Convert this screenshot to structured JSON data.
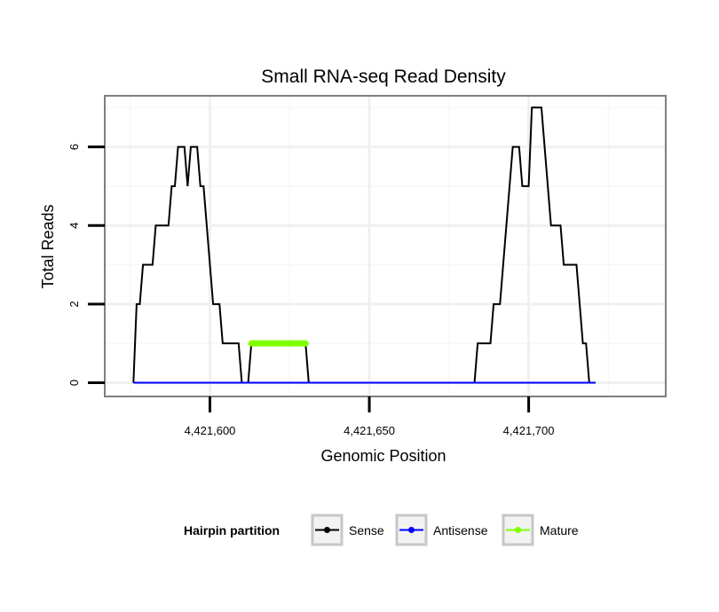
{
  "chart_data": {
    "type": "line",
    "title": "Small RNA-seq Read Density",
    "xlabel": "Genomic Position",
    "ylabel": "Total Reads",
    "xlim": [
      4421567,
      4421743
    ],
    "ylim": [
      -0.35,
      7.3
    ],
    "x_ticks": [
      4421600,
      4421650,
      4421700
    ],
    "x_tick_labels": [
      "4,421,600",
      "4,421,650",
      "4,421,700"
    ],
    "y_ticks": [
      0,
      2,
      4,
      6
    ],
    "y_tick_labels": [
      "0",
      "2",
      "4",
      "6"
    ],
    "grid": true,
    "legend": {
      "title": "Hairpin partition",
      "position": "bottom",
      "entries": [
        "Sense",
        "Antisense",
        "Mature"
      ]
    },
    "series": [
      {
        "name": "Sense",
        "color": "#000000",
        "points": [
          [
            4421576,
            0
          ],
          [
            4421577,
            2
          ],
          [
            4421578,
            2
          ],
          [
            4421579,
            3
          ],
          [
            4421580,
            3
          ],
          [
            4421582,
            3
          ],
          [
            4421583,
            4
          ],
          [
            4421585,
            4
          ],
          [
            4421587,
            4
          ],
          [
            4421588,
            5
          ],
          [
            4421589,
            5
          ],
          [
            4421590,
            6
          ],
          [
            4421592,
            6
          ],
          [
            4421593,
            5
          ],
          [
            4421594,
            6
          ],
          [
            4421596,
            6
          ],
          [
            4421597,
            5
          ],
          [
            4421598,
            5
          ],
          [
            4421599,
            4
          ],
          [
            4421600,
            3
          ],
          [
            4421601,
            2
          ],
          [
            4421603,
            2
          ],
          [
            4421604,
            1
          ],
          [
            4421606,
            1
          ],
          [
            4421608,
            1
          ],
          [
            4421609,
            1
          ],
          [
            4421610,
            0
          ],
          [
            4421612,
            0
          ],
          [
            4421613,
            1
          ],
          [
            4421630,
            1
          ],
          [
            4421631,
            0
          ],
          [
            4421683,
            0
          ],
          [
            4421684,
            1
          ],
          [
            4421688,
            1
          ],
          [
            4421689,
            2
          ],
          [
            4421691,
            2
          ],
          [
            4421692,
            3
          ],
          [
            4421693,
            4
          ],
          [
            4421694,
            5
          ],
          [
            4421695,
            6
          ],
          [
            4421697,
            6
          ],
          [
            4421698,
            5
          ],
          [
            4421700,
            5
          ],
          [
            4421701,
            7
          ],
          [
            4421704,
            7
          ],
          [
            4421705,
            6
          ],
          [
            4421706,
            5
          ],
          [
            4421707,
            4
          ],
          [
            4421710,
            4
          ],
          [
            4421711,
            3
          ],
          [
            4421715,
            3
          ],
          [
            4421716,
            2
          ],
          [
            4421717,
            1
          ],
          [
            4421718,
            1
          ],
          [
            4421719,
            0
          ],
          [
            4421721,
            0
          ]
        ]
      },
      {
        "name": "Antisense",
        "color": "#0000ff",
        "points": [
          [
            4421576,
            0
          ],
          [
            4421721,
            0
          ]
        ]
      },
      {
        "name": "Mature",
        "color": "#7fff00",
        "points": [
          [
            4421613,
            1
          ],
          [
            4421630,
            1
          ]
        ]
      }
    ]
  }
}
